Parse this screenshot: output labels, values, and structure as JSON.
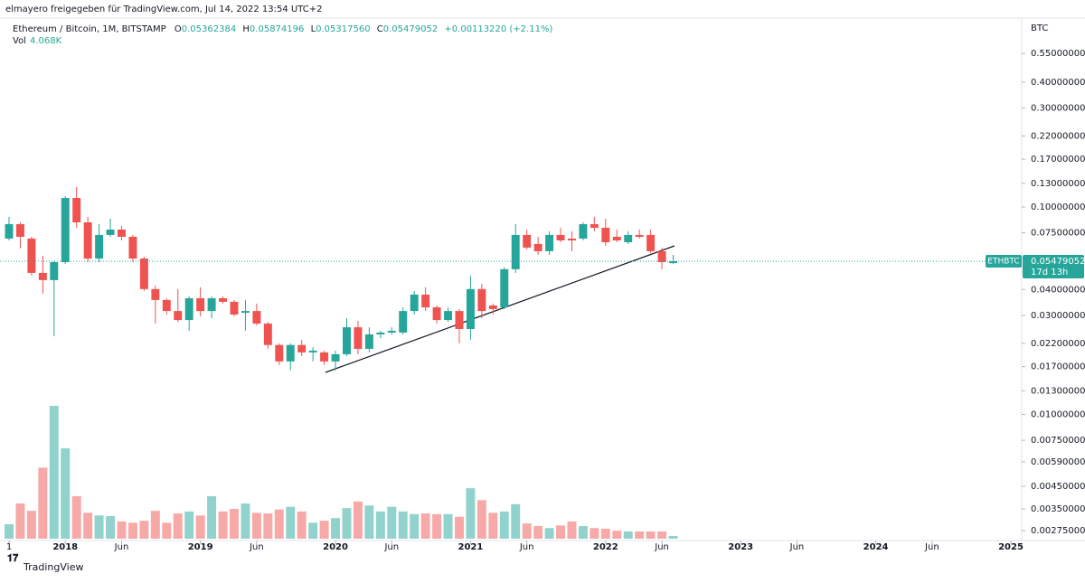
{
  "header": {
    "attribution": "elmayero freigegeben für TradingView.com, Jul 14, 2022 13:54 UTC+2",
    "symbol": "Ethereum / Bitcoin, 1M, BITSTAMP",
    "o": "O",
    "h": "H",
    "l": "L",
    "c": "C",
    "low": "0.05317560",
    "change": "+0.00113220 (+2.11%)",
    "vol": "Vol",
    "vol_value": "4.068K",
    "currency": "BTC",
    "ticker": "ETHBTC",
    "countdown": "17d 13h",
    "brand": "TradingView"
  },
  "chart_data": {
    "type": "candlestick",
    "log_scale": true,
    "up_color": "#26a69a",
    "down_color": "#ef5350",
    "x": [
      "2017-08",
      "2017-09",
      "2017-10",
      "2017-11",
      "2017-12",
      "2018-01",
      "2018-02",
      "2018-03",
      "2018-04",
      "2018-05",
      "2018-06",
      "2018-07",
      "2018-08",
      "2018-09",
      "2018-10",
      "2018-11",
      "2018-12",
      "2019-01",
      "2019-02",
      "2019-03",
      "2019-04",
      "2019-05",
      "2019-06",
      "2019-07",
      "2019-08",
      "2019-09",
      "2019-10",
      "2019-11",
      "2019-12",
      "2020-01",
      "2020-02",
      "2020-03",
      "2020-04",
      "2020-05",
      "2020-06",
      "2020-07",
      "2020-08",
      "2020-09",
      "2020-10",
      "2020-11",
      "2020-12",
      "2021-01",
      "2021-02",
      "2021-03",
      "2021-04",
      "2021-05",
      "2021-06",
      "2021-07",
      "2021-08",
      "2021-09",
      "2021-10",
      "2021-11",
      "2021-12",
      "2022-01",
      "2022-02",
      "2022-03",
      "2022-04",
      "2022-05",
      "2022-06",
      "2022-07"
    ],
    "open": [
      0.0704,
      0.0826,
      0.0704,
      0.0481,
      0.0444,
      0.0542,
      0.1105,
      0.0843,
      0.0564,
      0.0733,
      0.0778,
      0.0718,
      0.0564,
      0.0402,
      0.0356,
      0.0315,
      0.0285,
      0.0363,
      0.0315,
      0.0363,
      0.0349,
      0.0309,
      0.0315,
      0.0274,
      0.0216,
      0.018,
      0.0216,
      0.0199,
      0.0199,
      0.018,
      0.0195,
      0.0263,
      0.0207,
      0.0243,
      0.0248,
      0.0248,
      0.0315,
      0.0378,
      0.0328,
      0.0285,
      0.0315,
      0.0258,
      0.0402,
      0.0335,
      0.0328,
      0.0501,
      0.0733,
      0.0663,
      0.0612,
      0.0733,
      0.0704,
      0.0704,
      0.0826,
      0.0794,
      0.0718,
      0.0676,
      0.0733,
      0.0733,
      0.0612,
      0.05362384
    ],
    "high": [
      0.0896,
      0.0843,
      0.0718,
      0.0582,
      0.0548,
      0.1128,
      0.1247,
      0.0896,
      0.0826,
      0.0878,
      0.081,
      0.0733,
      0.0576,
      0.0418,
      0.0363,
      0.0402,
      0.037,
      0.041,
      0.037,
      0.037,
      0.0356,
      0.0356,
      0.0342,
      0.0279,
      0.022,
      0.022,
      0.0229,
      0.0211,
      0.0203,
      0.0203,
      0.0291,
      0.0282,
      0.0263,
      0.0253,
      0.0263,
      0.0328,
      0.0394,
      0.041,
      0.0335,
      0.0328,
      0.0322,
      0.0467,
      0.0426,
      0.0342,
      0.0511,
      0.0826,
      0.0778,
      0.0718,
      0.0763,
      0.0794,
      0.0763,
      0.0843,
      0.0896,
      0.0878,
      0.0778,
      0.0763,
      0.0778,
      0.0778,
      0.0637,
      0.05874196
    ],
    "low": [
      0.069,
      0.0631,
      0.0467,
      0.0382,
      0.0238,
      0.0531,
      0.0794,
      0.0542,
      0.0542,
      0.0718,
      0.069,
      0.0542,
      0.0394,
      0.0274,
      0.0303,
      0.0279,
      0.0253,
      0.0297,
      0.0291,
      0.0342,
      0.0297,
      0.0253,
      0.0268,
      0.0207,
      0.0173,
      0.0163,
      0.0191,
      0.018,
      0.0173,
      0.0163,
      0.0191,
      0.0195,
      0.0199,
      0.0233,
      0.0243,
      0.0243,
      0.0303,
      0.0315,
      0.0274,
      0.0279,
      0.022,
      0.0229,
      0.0291,
      0.0303,
      0.0322,
      0.0481,
      0.0624,
      0.0588,
      0.0588,
      0.0676,
      0.0612,
      0.069,
      0.0763,
      0.065,
      0.0676,
      0.0663,
      0.0704,
      0.06,
      0.0501,
      0.0531756
    ],
    "close": [
      0.0826,
      0.0718,
      0.0481,
      0.0444,
      0.0542,
      0.1105,
      0.0843,
      0.0564,
      0.0733,
      0.0778,
      0.0718,
      0.0564,
      0.0402,
      0.0356,
      0.0315,
      0.0285,
      0.0363,
      0.0315,
      0.0363,
      0.0349,
      0.0303,
      0.0315,
      0.0274,
      0.0216,
      0.018,
      0.0216,
      0.0199,
      0.0203,
      0.018,
      0.0195,
      0.0263,
      0.0207,
      0.0243,
      0.0248,
      0.0253,
      0.0315,
      0.0378,
      0.0328,
      0.0285,
      0.0315,
      0.0258,
      0.0402,
      0.0315,
      0.0322,
      0.0501,
      0.0733,
      0.0637,
      0.0612,
      0.0733,
      0.069,
      0.069,
      0.0826,
      0.0794,
      0.0676,
      0.069,
      0.0733,
      0.0718,
      0.0612,
      0.0542,
      0.05479052
    ],
    "volume": [
      21.8,
      53,
      42,
      107,
      200,
      136,
      64,
      39,
      35,
      34,
      26,
      24,
      27,
      42,
      24,
      38,
      41,
      35,
      64,
      41,
      45,
      53,
      39,
      38,
      44,
      48,
      41,
      24,
      27,
      31,
      46,
      56,
      50,
      41,
      48,
      41,
      37,
      38,
      37,
      37,
      33,
      76,
      58,
      39,
      41,
      52,
      23,
      19,
      16,
      20,
      26,
      19,
      16,
      15,
      12,
      11,
      11,
      11,
      11,
      4.068
    ],
    "vlim": [
      0,
      200
    ],
    "xlim": [
      "2017-08",
      "2025-01"
    ],
    "xticks": [
      {
        "value": "2017-08",
        "label": "1"
      },
      {
        "value": "2018-01",
        "label": "2018"
      },
      {
        "value": "2018-06",
        "label": "Jun"
      },
      {
        "value": "2019-01",
        "label": "2019"
      },
      {
        "value": "2019-06",
        "label": "Jun"
      },
      {
        "value": "2020-01",
        "label": "2020"
      },
      {
        "value": "2020-06",
        "label": "Jun"
      },
      {
        "value": "2021-01",
        "label": "2021"
      },
      {
        "value": "2021-06",
        "label": "Jun"
      },
      {
        "value": "2022-01",
        "label": "2022"
      },
      {
        "value": "2022-06",
        "label": "Jun"
      },
      {
        "value": "2023-01",
        "label": "2023"
      },
      {
        "value": "2023-06",
        "label": "Jun"
      },
      {
        "value": "2024-01",
        "label": "2024"
      },
      {
        "value": "2024-06",
        "label": "Jun"
      },
      {
        "value": "2025-01",
        "label": "2025"
      }
    ],
    "ylim": [
      0.00249,
      0.798
    ],
    "yticks": [
      {
        "value": 0.55,
        "label": "0.55000000"
      },
      {
        "value": 0.4,
        "label": "0.40000000"
      },
      {
        "value": 0.3,
        "label": "0.30000000"
      },
      {
        "value": 0.22,
        "label": "0.22000000"
      },
      {
        "value": 0.17,
        "label": "0.17000000"
      },
      {
        "value": 0.13,
        "label": "0.13000000"
      },
      {
        "value": 0.1,
        "label": "0.10000000"
      },
      {
        "value": 0.075,
        "label": "0.07500000"
      },
      {
        "value": 0.04,
        "label": "0.04000000"
      },
      {
        "value": 0.03,
        "label": "0.03000000"
      },
      {
        "value": 0.022,
        "label": "0.02200000"
      },
      {
        "value": 0.017,
        "label": "0.01700000"
      },
      {
        "value": 0.013,
        "label": "0.01300000"
      },
      {
        "value": 0.01,
        "label": "0.01000000"
      },
      {
        "value": 0.0075,
        "label": "0.00750000"
      },
      {
        "value": 0.0059,
        "label": "0.00590000"
      },
      {
        "value": 0.0045,
        "label": "0.00450000"
      },
      {
        "value": 0.0035,
        "label": "0.00350000"
      },
      {
        "value": 0.00275,
        "label": "0.00275000"
      }
    ]
  }
}
